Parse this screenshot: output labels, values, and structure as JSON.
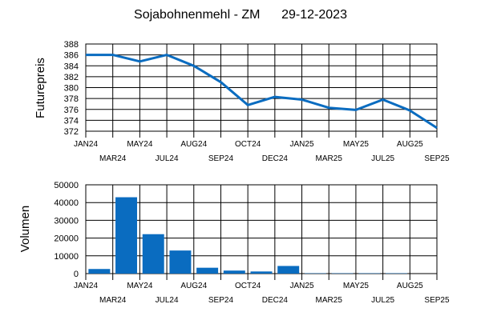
{
  "title": "Sojabohnenmehl - ZM",
  "date": "29-12-2023",
  "chart_data": [
    {
      "type": "line",
      "ylabel": "Futurepreis",
      "ylim": [
        372,
        388
      ],
      "yticks": [
        372,
        374,
        376,
        378,
        380,
        382,
        384,
        386,
        388
      ],
      "categories": [
        "JAN24",
        "MAR24",
        "MAY24",
        "JUL24",
        "AUG24",
        "SEP24",
        "OCT24",
        "DEC24",
        "JAN25",
        "MAR25",
        "MAY25",
        "JUL25",
        "AUG25",
        "SEP25"
      ],
      "series": [
        {
          "values": [
            386.0,
            386.0,
            384.8,
            386.0,
            384.0,
            381.0,
            376.8,
            378.3,
            377.8,
            376.3,
            375.9,
            377.8,
            375.8,
            372.6
          ]
        }
      ],
      "color": "#0a6cc0",
      "grid": true
    },
    {
      "type": "bar",
      "ylabel": "Volumen",
      "ylim": [
        0,
        50000
      ],
      "yticks": [
        0,
        10000,
        20000,
        30000,
        40000,
        50000
      ],
      "categories": [
        "JAN24",
        "MAR24",
        "MAY24",
        "JUL24",
        "AUG24",
        "SEP24",
        "OCT24",
        "DEC24",
        "JAN25",
        "MAR25",
        "MAY25",
        "JUL25",
        "AUG25",
        "SEP25"
      ],
      "series": [
        {
          "values": [
            2600,
            43000,
            22200,
            13000,
            3300,
            1700,
            1200,
            4300,
            200,
            200,
            200,
            200,
            0,
            0
          ]
        }
      ],
      "color": "#0a6cc0",
      "grid": true
    }
  ]
}
